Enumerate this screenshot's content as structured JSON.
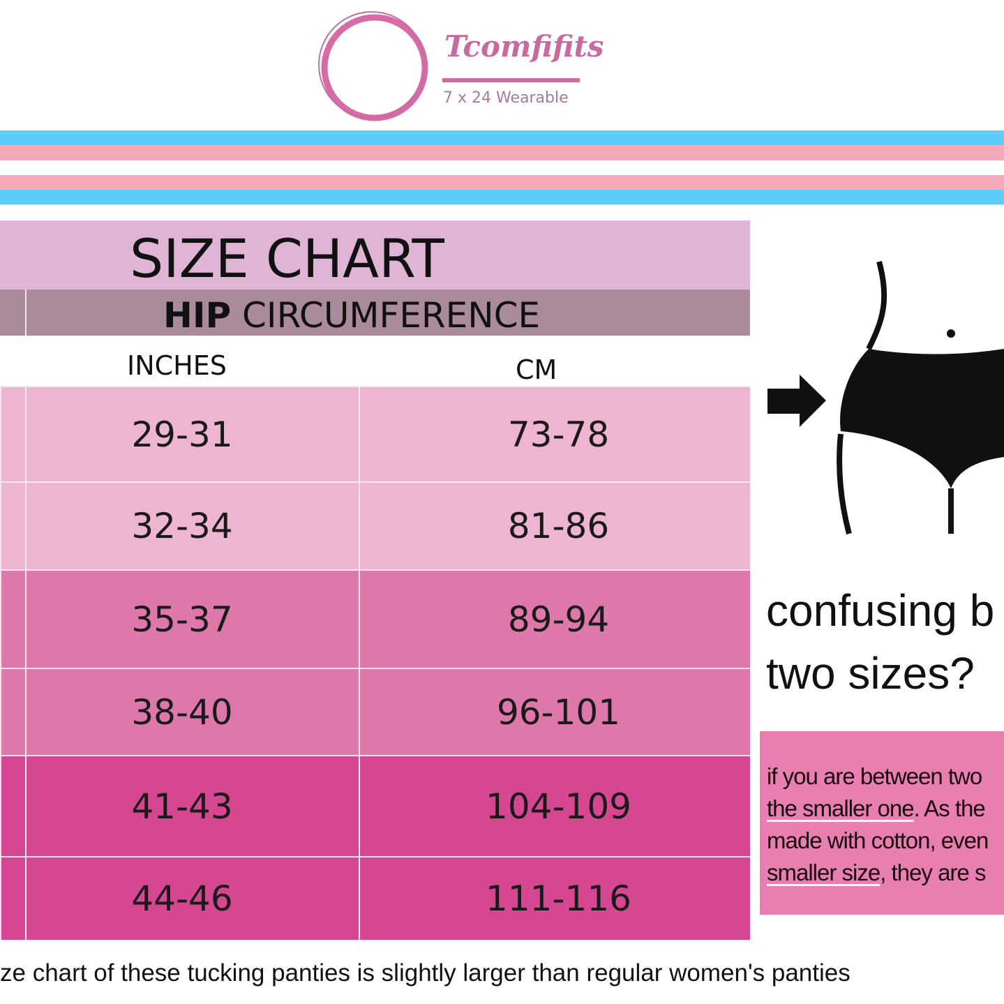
{
  "brand": {
    "name": "Tcomfifits",
    "tagline": "7 x 24 Wearable",
    "color": "#d86aa6"
  },
  "stripes": [
    "#5bcdf8",
    "#f4a8b8",
    "#ffffff",
    "#f4a8b8",
    "#5bcdf8"
  ],
  "chart": {
    "title": "SIZE CHART",
    "header_bold": "HIP",
    "header_rest": " CIRCUMFERENCE",
    "col_inches": "INCHES",
    "col_cm": "CM",
    "rows": [
      {
        "inches": "29-31",
        "cm": "73-78",
        "color": "#edb5cf"
      },
      {
        "inches": "32-34",
        "cm": "81-86",
        "color": "#edb5cf"
      },
      {
        "inches": "35-37",
        "cm": "89-94",
        "color": "#de78ab"
      },
      {
        "inches": "38-40",
        "cm": "96-101",
        "color": "#de78ab"
      },
      {
        "inches": "41-43",
        "cm": "104-109",
        "color": "#d64792"
      },
      {
        "inches": "44-46",
        "cm": "111-116",
        "color": "#d64792"
      }
    ]
  },
  "side": {
    "question_line1": "confusing b",
    "question_line2": "two sizes?",
    "tip": {
      "l1": "if you are between two",
      "l2a": "the smaller one",
      "l2b": ". As the",
      "l3": "made with cotton, even",
      "l4a": "smaller size",
      "l4b": ", they are s"
    }
  },
  "footer": "ze chart of these tucking panties is slightly larger than regular women's panties"
}
